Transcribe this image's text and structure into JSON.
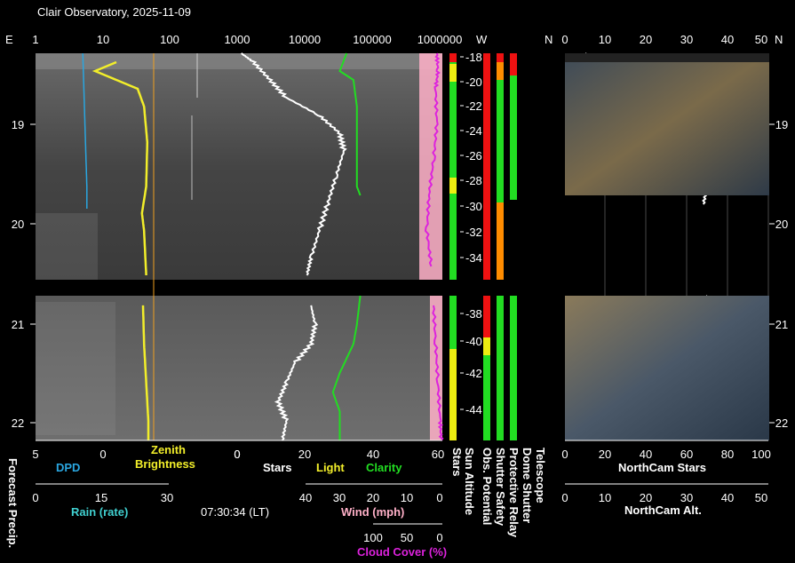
{
  "title": "Clair Observatory, 2025-11-09",
  "timestamp": "07:30:34 (LT)",
  "colors": {
    "dpd": "#2aa6e0",
    "zenith": "#f2ee2a",
    "zenith_light": "#f0a020",
    "stars": "#ffffff",
    "clarity": "#22dd22",
    "cloud": "#dd22dd",
    "wind": "#ffb0c8",
    "rain": "#40d0d0",
    "red": "#ee1111",
    "orange": "#ff8c00",
    "green": "#22dd22",
    "yellow": "#eeee11"
  },
  "top_axis": {
    "left_dir": "E",
    "ticks": [
      "1",
      "10",
      "100",
      "1000",
      "10000",
      "100000",
      "1000000"
    ],
    "mid_w": "W",
    "mid_n": "N",
    "right_ticks": [
      "0",
      "10",
      "20",
      "30",
      "40",
      "50"
    ],
    "right_n": "N"
  },
  "time_axis": {
    "hours": [
      "19",
      "20",
      "21",
      "22"
    ]
  },
  "sun_altitude_ticks": [
    "-18",
    "-20",
    "-22",
    "-24",
    "-26",
    "-28",
    "-30",
    "-32",
    "-34",
    "-38",
    "-40",
    "-42",
    "-44"
  ],
  "bottom_labels": {
    "forecast_precip": "Forecast Precip.",
    "dpd_ticks": [
      "5",
      "0"
    ],
    "dpd": "DPD",
    "zenith_ticks": [
      "20",
      "0"
    ],
    "zenith_brightness": "Zenith\nBrightness",
    "stars_ticks": [
      "0",
      "20",
      "40",
      "60"
    ],
    "stars": "Stars",
    "light": "Light",
    "clarity": "Clarity",
    "rain_ticks": [
      "0",
      "15",
      "30"
    ],
    "rain": "Rain (rate)",
    "wind_ticks": [
      "40",
      "30",
      "20",
      "10",
      "0"
    ],
    "wind": "Wind (mph)",
    "cloud_ticks": [
      "100",
      "50",
      "0"
    ],
    "cloud": "Cloud Cover (%)",
    "northcam_stars_ticks": [
      "0",
      "20",
      "40",
      "60",
      "80",
      "100"
    ],
    "northcam_stars": "NorthCam Stars",
    "northcam_alt_ticks": [
      "0",
      "10",
      "20",
      "30",
      "40",
      "50"
    ],
    "northcam_alt": "NorthCam Alt."
  },
  "status_columns": [
    "Stars",
    "Sun Altitude",
    "Obs. Potential",
    "Shutter Safety",
    "Protective Relay",
    "Dome Shutter",
    "Telescope"
  ],
  "chart_data": {
    "type": "line",
    "x_axis": "local time (hours)",
    "time_range": [
      18.0,
      22.2
    ],
    "gap": [
      20.55,
      20.7
    ],
    "series": [
      {
        "name": "DPD",
        "points": [
          [
            18.0,
            1.5
          ],
          [
            18.5,
            1.4
          ],
          [
            19.0,
            1.3
          ],
          [
            19.5,
            1.2
          ],
          [
            19.75,
            1.2
          ]
        ]
      },
      {
        "name": "Zenith Brightness",
        "points": [
          [
            18.1,
            5
          ],
          [
            18.2,
            7
          ],
          [
            18.4,
            3
          ],
          [
            18.6,
            2.4
          ],
          [
            19.0,
            2.1
          ],
          [
            19.5,
            2.2
          ],
          [
            19.8,
            2.6
          ],
          [
            20.0,
            2.4
          ],
          [
            20.5,
            2.2
          ],
          [
            20.8,
            2.5
          ],
          [
            21.2,
            2.4
          ],
          [
            21.6,
            2.2
          ],
          [
            22.0,
            2.0
          ],
          [
            22.2,
            2.0
          ]
        ]
      },
      {
        "name": "Stars",
        "points": [
          [
            18.0,
            1
          ],
          [
            18.1,
            4
          ],
          [
            18.3,
            8
          ],
          [
            18.5,
            12
          ],
          [
            18.7,
            20
          ],
          [
            18.9,
            25
          ],
          [
            19.1,
            26
          ],
          [
            19.4,
            24
          ],
          [
            19.7,
            22
          ],
          [
            20.0,
            20
          ],
          [
            20.3,
            18
          ],
          [
            20.5,
            17
          ],
          [
            20.8,
            18
          ],
          [
            21.0,
            19
          ],
          [
            21.2,
            18
          ],
          [
            21.4,
            14
          ],
          [
            21.6,
            12
          ],
          [
            21.8,
            10
          ],
          [
            22.0,
            12
          ],
          [
            22.2,
            11
          ]
        ]
      },
      {
        "name": "Clarity",
        "points": [
          [
            18.0,
            32
          ],
          [
            18.2,
            30
          ],
          [
            18.3,
            34
          ],
          [
            18.6,
            35
          ],
          [
            19.0,
            35
          ],
          [
            19.5,
            35
          ],
          [
            19.6,
            36
          ],
          [
            20.7,
            36
          ],
          [
            21.0,
            35
          ],
          [
            21.2,
            34
          ],
          [
            21.5,
            30
          ],
          [
            21.7,
            28
          ],
          [
            21.9,
            30
          ],
          [
            22.2,
            30
          ]
        ]
      },
      {
        "name": "Cloud Cover",
        "points": [
          [
            18.0,
            5
          ],
          [
            18.2,
            4
          ],
          [
            18.4,
            6
          ],
          [
            18.8,
            5
          ],
          [
            19.2,
            8
          ],
          [
            19.6,
            12
          ],
          [
            20.0,
            14
          ],
          [
            20.4,
            10
          ],
          [
            20.8,
            8
          ],
          [
            21.2,
            6
          ],
          [
            21.6,
            4
          ],
          [
            22.0,
            2
          ],
          [
            22.2,
            1
          ]
        ]
      },
      {
        "name": "NorthCam Stars",
        "points": [
          [
            18.0,
            10
          ],
          [
            18.2,
            20
          ],
          [
            18.4,
            40
          ],
          [
            18.6,
            55
          ],
          [
            18.9,
            70
          ],
          [
            19.2,
            72
          ],
          [
            19.5,
            70
          ],
          [
            19.7,
            68
          ],
          [
            20.7,
            70
          ],
          [
            20.9,
            60
          ],
          [
            21.1,
            50
          ],
          [
            21.3,
            35
          ],
          [
            21.6,
            20
          ],
          [
            21.9,
            10
          ],
          [
            22.2,
            8
          ]
        ]
      }
    ]
  }
}
